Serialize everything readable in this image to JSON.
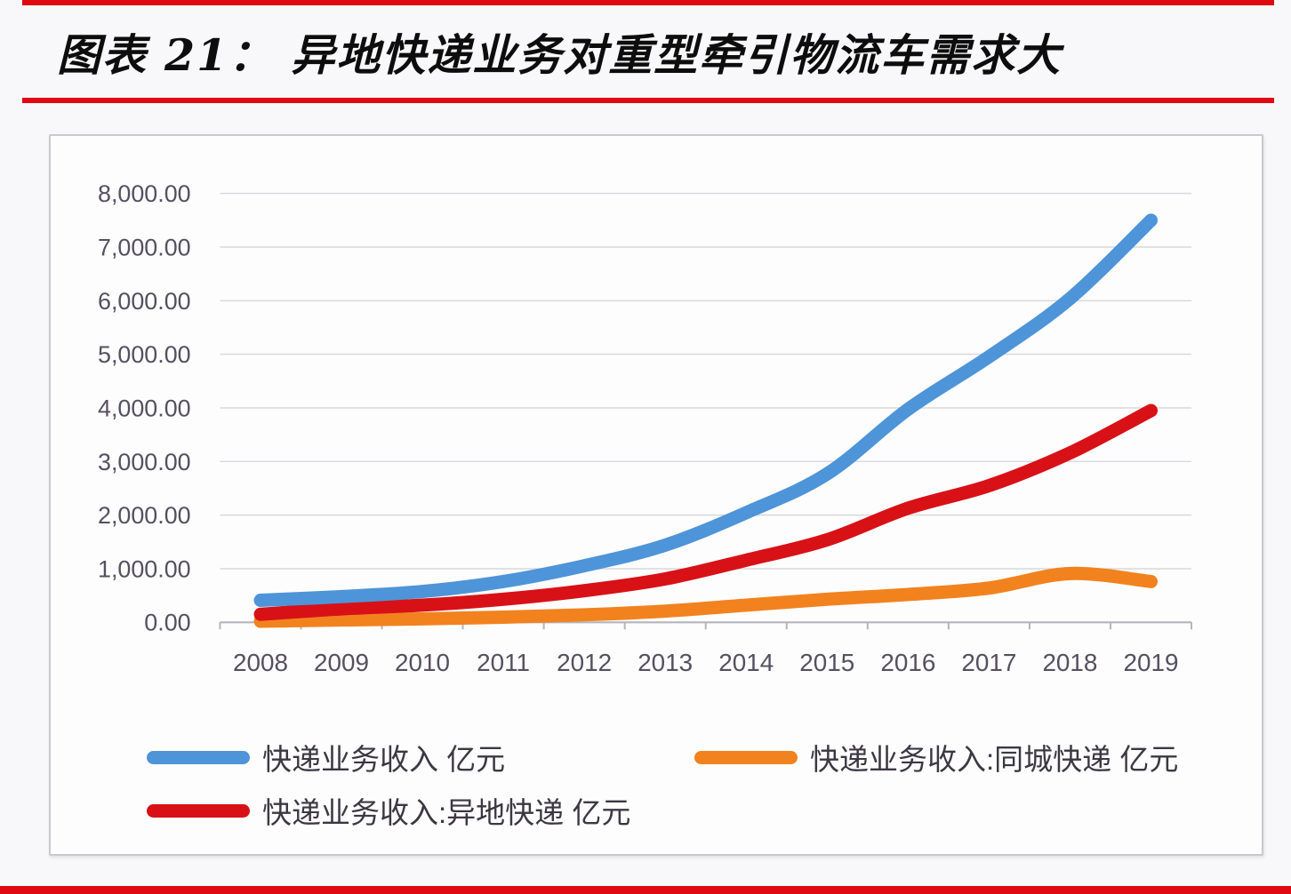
{
  "header": {
    "title": "图表 21： 异地快递业务对重型牵引物流车需求大"
  },
  "accent": {
    "rule_red": "#de0911"
  },
  "chart_data": {
    "type": "line",
    "title": "异地快递业务对重型牵引物流车需求大",
    "unit": "亿元",
    "smoothed": true,
    "grid": "horizontal",
    "legend_position": "bottom",
    "xlabel": "",
    "ylabel": "",
    "ylim": [
      0,
      8000
    ],
    "categories": [
      "2008",
      "2009",
      "2010",
      "2011",
      "2012",
      "2013",
      "2014",
      "2015",
      "2016",
      "2017",
      "2018",
      "2019"
    ],
    "y_ticks": [
      0,
      1000,
      2000,
      3000,
      4000,
      5000,
      6000,
      7000,
      8000
    ],
    "y_tick_labels": [
      "0.00",
      "1,000.00",
      "2,000.00",
      "3,000.00",
      "4,000.00",
      "5,000.00",
      "6,000.00",
      "7,000.00",
      "8,000.00"
    ],
    "series": [
      {
        "name": "快递业务收入 亿元",
        "color": "#4e94d8",
        "values": [
          410,
          480,
          575,
          760,
          1055,
          1440,
          2045,
          2770,
          3975,
          4955,
          6040,
          7500
        ]
      },
      {
        "name": "快递业务收入:同城快递 亿元",
        "color": "#f2821e",
        "values": [
          20,
          45,
          65,
          95,
          140,
          210,
          320,
          430,
          520,
          640,
          910,
          760
        ]
      },
      {
        "name": "快递业务收入:异地快递 亿元",
        "color": "#d81117",
        "values": [
          150,
          250,
          320,
          430,
          590,
          810,
          1160,
          1540,
          2130,
          2550,
          3160,
          3950
        ]
      }
    ],
    "style": {
      "gridline_color": "#d8d8dc",
      "axis_color": "#b4b4bc",
      "tick_label_color": "#55505f",
      "line_width": 15
    }
  }
}
